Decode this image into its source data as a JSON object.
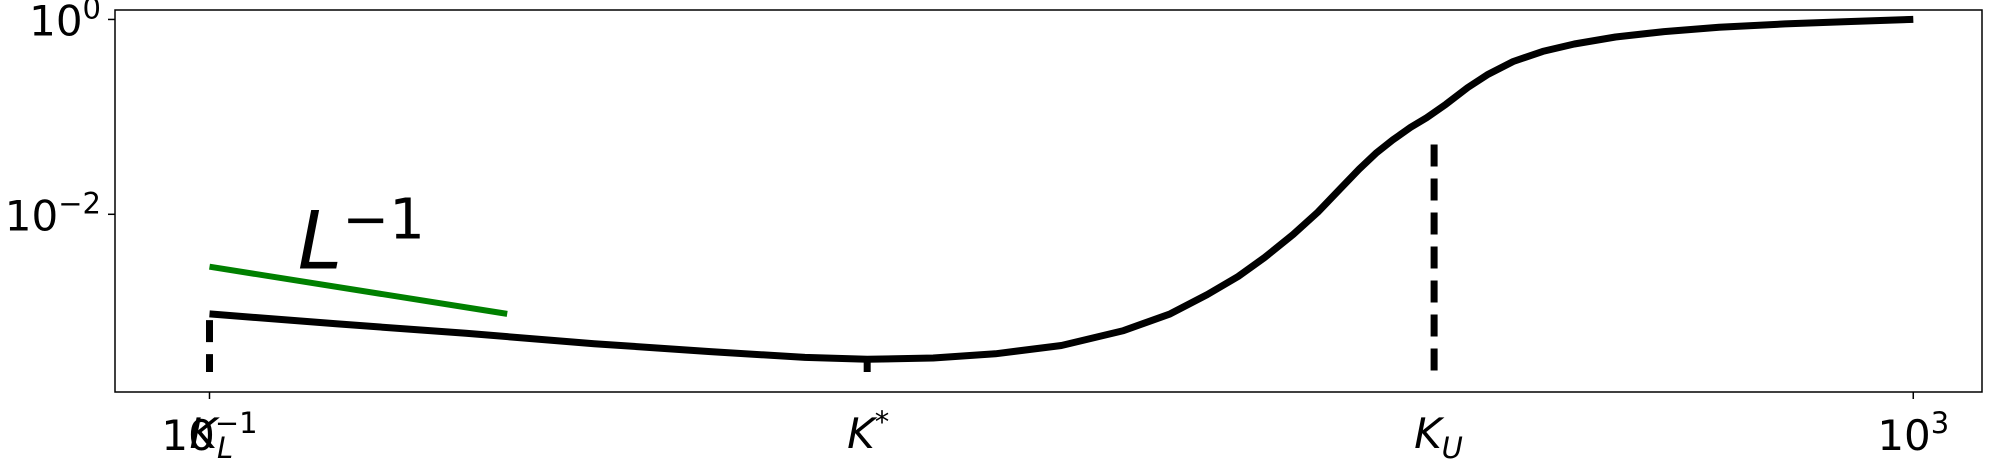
{
  "chart_data": {
    "type": "line",
    "xscale": "log",
    "yscale": "log",
    "xlim": [
      0.06,
      1450
    ],
    "ylim": [
      0.00015,
      1.25
    ],
    "grid": false,
    "x_ticks": [
      {
        "value": 0.1,
        "base": "10",
        "exp": "−1"
      },
      {
        "value": 1000,
        "base": "10",
        "exp": "3"
      }
    ],
    "y_ticks": [
      {
        "value": 1,
        "base": "10",
        "exp": "0"
      },
      {
        "value": 0.01,
        "base": "10",
        "exp": "−2"
      }
    ],
    "markers": [
      {
        "name": "K_L",
        "x": 0.1,
        "y_top": 0.00082,
        "label_main": "K",
        "label_sub": "L",
        "label_sup": ""
      },
      {
        "name": "K_star",
        "x": 3.5,
        "y_top": 0.00032,
        "label_main": "K",
        "label_sub": "",
        "label_sup": "*"
      },
      {
        "name": "K_U",
        "x": 75,
        "y_top": 0.052,
        "label_main": "K",
        "label_sub": "U",
        "label_sup": ""
      }
    ],
    "series": [
      {
        "color": "#000000",
        "x": [
          0.1,
          0.2,
          0.4,
          0.8,
          1.5,
          2.5,
          3.5,
          5,
          7,
          10,
          14,
          18,
          22,
          26,
          30,
          35,
          40,
          45,
          50,
          55,
          60,
          66,
          72,
          80,
          90,
          100,
          115,
          135,
          160,
          200,
          260,
          350,
          500,
          700,
          1000
        ],
        "y": [
          0.00095,
          0.00075,
          0.0006,
          0.00047,
          0.00039,
          0.00034,
          0.000325,
          0.000335,
          0.00037,
          0.00045,
          0.00064,
          0.00095,
          0.0015,
          0.0023,
          0.0036,
          0.0062,
          0.0105,
          0.018,
          0.029,
          0.043,
          0.058,
          0.078,
          0.098,
          0.135,
          0.2,
          0.27,
          0.37,
          0.47,
          0.56,
          0.66,
          0.75,
          0.83,
          0.9,
          0.95,
          1.0
        ]
      },
      {
        "name": "L⁻¹ reference",
        "color": "#008000",
        "x": [
          0.1,
          0.5
        ],
        "y": [
          0.0029,
          0.00095
        ]
      }
    ],
    "annotations": [
      {
        "text_main": "L",
        "text_sup": "−1",
        "x": 0.2,
        "y": 0.0037
      }
    ]
  }
}
